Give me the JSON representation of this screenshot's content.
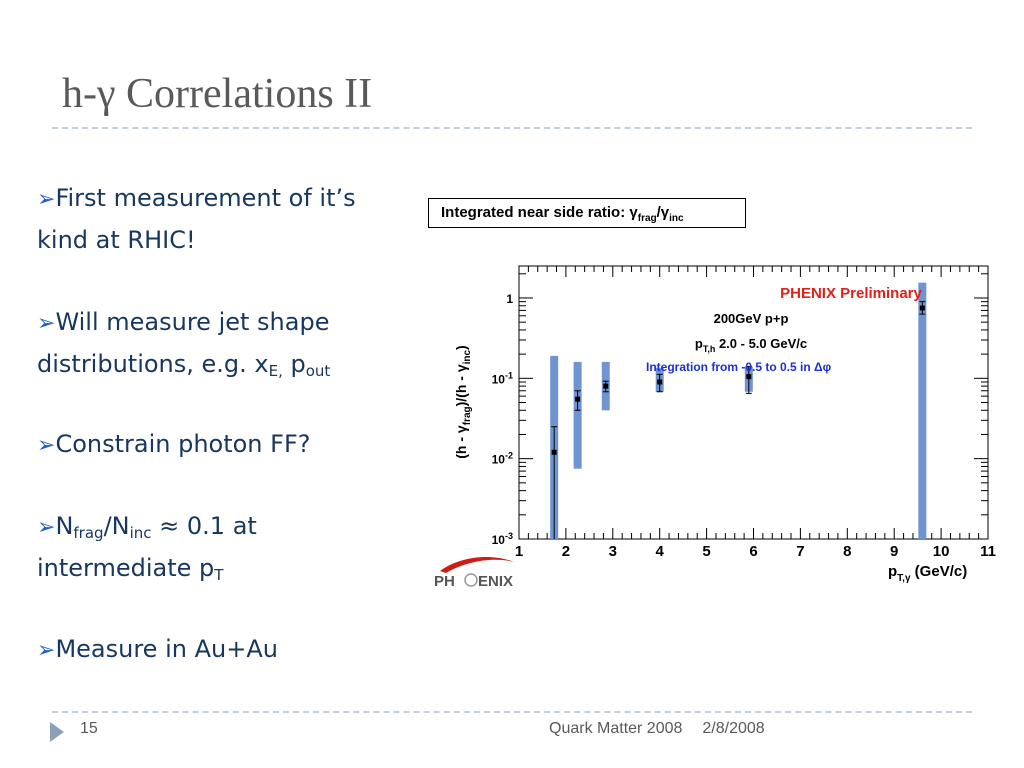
{
  "slide": {
    "title": "h-γ Correlations II",
    "slide_number": "15",
    "footer_event": "Quark Matter 2008",
    "footer_date": "2/8/2008"
  },
  "bullets": [
    {
      "text_a": "First measurement of it’s",
      "text_b": "kind at RHIC!"
    },
    {
      "text_a": "Will measure jet shape",
      "text_b": "distributions, e.g. x",
      "sub_1": "E,",
      "mid": " p",
      "sub_2": "out"
    },
    {
      "text_a": "Constrain photon FF?"
    },
    {
      "part_1": "N",
      "sub_1": "frag",
      "part_2": "/N",
      "sub_2": "inc",
      "part_3": " ≈ 0.1 at",
      "text_b": "intermediate p",
      "sub_3": "T"
    },
    {
      "text_a": "Measure in Au+Au"
    }
  ],
  "ratio_box": {
    "label": "Integrated near side ratio: ",
    "num": "γ",
    "num_sub": "frag",
    "sep": "/γ",
    "den_sub": "inc"
  },
  "chart_data": {
    "type": "scatter",
    "title": "Integrated near side ratio: γfrag/γinc",
    "annotations": [
      "PHENIX Preliminary",
      "200GeV p+p",
      "pT,h 2.0 - 5.0 GeV/c",
      "Integration from -0.5 to 0.5 in Δφ"
    ],
    "xlabel": "pT,γ (GeV/c)",
    "ylabel": "(h - γfrag)/(h - γinc)",
    "xlim": [
      1,
      11
    ],
    "ylim": [
      0.001,
      2.5
    ],
    "yscale": "log",
    "x_ticks": [
      "1",
      "2",
      "3",
      "4",
      "5",
      "6",
      "7",
      "8",
      "9",
      "10",
      "11"
    ],
    "y_ticks": [
      "10-3",
      "10-2",
      "10-1",
      "1"
    ],
    "colors": {
      "sys_band": "#6f94d0",
      "annotation_red": "#e0201a",
      "annotation_blue": "#1a2fd6",
      "points": "#000000"
    },
    "series": [
      {
        "x": [
          1.75,
          2.25,
          2.85,
          4.0,
          5.9,
          9.6
        ],
        "y": [
          0.012,
          0.055,
          0.08,
          0.09,
          0.105,
          0.75
        ],
        "stat_err_low": [
          0.001,
          0.04,
          0.068,
          0.068,
          0.065,
          0.63
        ],
        "stat_err_high": [
          0.025,
          0.07,
          0.092,
          0.112,
          0.14,
          0.9
        ],
        "sys_low": [
          0.001,
          0.0075,
          0.04,
          0.068,
          0.068,
          0.001
        ],
        "sys_high": [
          0.19,
          0.16,
          0.16,
          0.135,
          0.14,
          1.55
        ]
      }
    ]
  },
  "phenix_logo": {
    "text_left": "PH",
    "text_right": "ENIX"
  }
}
